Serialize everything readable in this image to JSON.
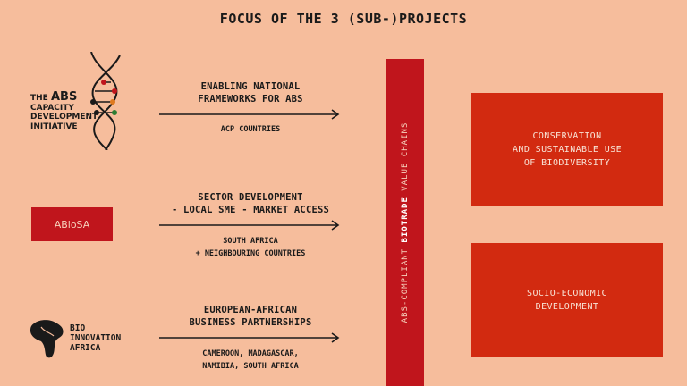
{
  "title": "FOCUS OF THE 3 (SUB-)PROJECTS",
  "logos": {
    "abs": {
      "line1_pre": "THE",
      "line1_big": "ABS",
      "line2": "CAPACITY",
      "line3": "DEVELOPMENT",
      "line4": "INITIATIVE"
    },
    "abiosa": {
      "label": "ABioSA"
    },
    "bio_innovation": {
      "line1": "BIO",
      "line2": "INNOVATION",
      "line3": "AFRICA"
    }
  },
  "projects": [
    {
      "heading_line1": "ENABLING NATIONAL",
      "heading_line2": "FRAMEWORKS FOR ABS",
      "sub_line1": "ACP COUNTRIES",
      "sub_line2": ""
    },
    {
      "heading_line1": "SECTOR DEVELOPMENT",
      "heading_line2": "- LOCAL SME - MARKET ACCESS",
      "sub_line1": "SOUTH AFRICA",
      "sub_line2": "+ NEIGHBOURING COUNTRIES"
    },
    {
      "heading_line1": "EUROPEAN-AFRICAN",
      "heading_line2": "BUSINESS PARTNERSHIPS",
      "sub_line1": "CAMEROON, MADAGASCAR,",
      "sub_line2": "NAMIBIA, SOUTH AFRICA"
    }
  ],
  "vertical_bar": {
    "pre": "ABS-COMPLIANT ",
    "bold": "BIOTRADE",
    "post": " VALUE CHAINS"
  },
  "outcomes": [
    {
      "label": "CONSERVATION\nAND SUSTAINABLE USE\nOF BIODIVERSITY"
    },
    {
      "label": "SOCIO-ECONOMIC\nDEVELOPMENT"
    }
  ],
  "colors": {
    "background": "#f6bd9c",
    "bar": "#c0151c",
    "outcome_box": "#d22a10",
    "text": "#1a1a1a"
  }
}
